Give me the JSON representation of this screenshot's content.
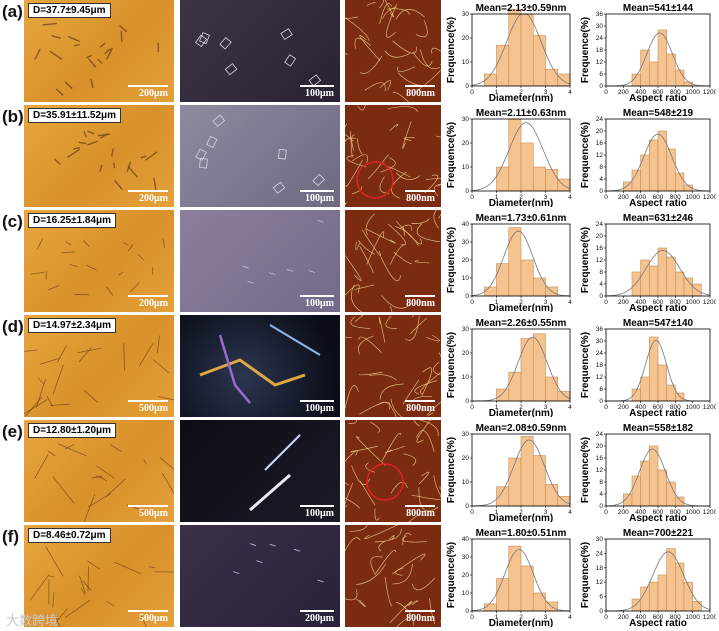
{
  "figure": {
    "watermark": "大数跨境",
    "axis_labels": {
      "diameter_x": "Diameter(nm)",
      "aspect_x": "Aspect ratio",
      "freq_y": "Frequence(%)"
    }
  },
  "chart_data": [
    {
      "panel": "(a)",
      "sizes": "D=37.7±9.45μm",
      "scales": [
        "200μm",
        "100μm",
        "800nm"
      ],
      "diameter": {
        "type": "bar",
        "title": "Mean=2.13±0.59nm",
        "xlabel": "Diameter(nm)",
        "ylabel": "Frequence(%)",
        "xlim": [
          0,
          4
        ],
        "ylim": [
          0,
          30
        ],
        "xticks": [
          0,
          1,
          2,
          3,
          4
        ],
        "yticks": [
          0,
          10,
          20,
          30
        ],
        "bin_width": 0.5,
        "bin_start": [
          0.5,
          1.0,
          1.5,
          2.0,
          2.5,
          3.0,
          3.5
        ],
        "values": [
          5,
          17,
          32,
          30,
          21,
          7,
          5
        ]
      },
      "aspect": {
        "type": "bar",
        "title": "Mean=541±144",
        "xlabel": "Aspect ratio",
        "ylabel": "Frequence(%)",
        "xlim": [
          0,
          1200
        ],
        "ylim": [
          0,
          36
        ],
        "xticks": [
          0,
          200,
          400,
          600,
          800,
          1000,
          1200
        ],
        "yticks": [
          0,
          6,
          12,
          18,
          24,
          30,
          36
        ],
        "bin_width": 100,
        "bin_start": [
          300,
          400,
          500,
          600,
          700,
          800,
          900
        ],
        "values": [
          6,
          18,
          12,
          28,
          16,
          8,
          2
        ]
      }
    },
    {
      "panel": "(b)",
      "sizes": "D=35.91±11.52μm",
      "scales": [
        "200μm",
        "100μm",
        "800nm"
      ],
      "diameter": {
        "type": "bar",
        "title": "Mean=2.11±0.63nm",
        "xlabel": "Diameter(nm)",
        "ylabel": "Frequence(%)",
        "xlim": [
          0,
          4
        ],
        "ylim": [
          0,
          30
        ],
        "xticks": [
          0,
          1,
          2,
          3,
          4
        ],
        "yticks": [
          0,
          10,
          20,
          30
        ],
        "bin_width": 0.5,
        "bin_start": [
          1.0,
          1.5,
          2.0,
          2.5,
          3.0,
          3.5
        ],
        "values": [
          10,
          30,
          20,
          10,
          9,
          5
        ]
      },
      "aspect": {
        "type": "bar",
        "title": "Mean=548±219",
        "xlabel": "Aspect ratio",
        "ylabel": "Frequence(%)",
        "xlim": [
          0,
          1200
        ],
        "ylim": [
          0,
          24
        ],
        "xticks": [
          0,
          200,
          400,
          600,
          800,
          1000,
          1200
        ],
        "yticks": [
          0,
          4,
          8,
          12,
          16,
          20,
          24
        ],
        "bin_width": 100,
        "bin_start": [
          200,
          300,
          400,
          500,
          600,
          700,
          800,
          900
        ],
        "values": [
          3,
          7,
          12,
          17,
          20,
          14,
          6,
          2
        ]
      }
    },
    {
      "panel": "(c)",
      "sizes": "D=16.25±1.84μm",
      "scales": [
        "200μm",
        "100μm",
        "800nm"
      ],
      "diameter": {
        "type": "bar",
        "title": "Mean=1.73±0.61nm",
        "xlabel": "Diameter(nm)",
        "ylabel": "Frequence(%)",
        "xlim": [
          0,
          4
        ],
        "ylim": [
          0,
          40
        ],
        "xticks": [
          0,
          1,
          2,
          3,
          4
        ],
        "yticks": [
          0,
          10,
          20,
          30,
          40
        ],
        "bin_width": 0.5,
        "bin_start": [
          0.5,
          1.0,
          1.5,
          2.0,
          2.5,
          3.0
        ],
        "values": [
          5,
          18,
          38,
          20,
          10,
          5
        ]
      },
      "aspect": {
        "type": "bar",
        "title": "Mean=631±246",
        "xlabel": "Aspect ratio",
        "ylabel": "Frequence(%)",
        "xlim": [
          0,
          1200
        ],
        "ylim": [
          0,
          24
        ],
        "xticks": [
          0,
          200,
          400,
          600,
          800,
          1000,
          1200
        ],
        "yticks": [
          0,
          4,
          8,
          12,
          16,
          20,
          24
        ],
        "bin_width": 100,
        "bin_start": [
          300,
          400,
          500,
          600,
          700,
          800,
          900,
          1000
        ],
        "values": [
          8,
          12,
          10,
          16,
          13,
          8,
          6,
          4
        ]
      }
    },
    {
      "panel": "(d)",
      "sizes": "D=14.97±2.34μm",
      "scales": [
        "500μm",
        "100μm",
        "800nm"
      ],
      "diameter": {
        "type": "bar",
        "title": "Mean=2.26±0.55nm",
        "xlabel": "Diameter(nm)",
        "ylabel": "Frequence(%)",
        "xlim": [
          0,
          4
        ],
        "ylim": [
          0,
          30
        ],
        "xticks": [
          0,
          1,
          2,
          3,
          4
        ],
        "yticks": [
          0,
          10,
          20,
          30
        ],
        "bin_width": 0.5,
        "bin_start": [
          1.0,
          1.5,
          2.0,
          2.5,
          3.0,
          3.5
        ],
        "values": [
          5,
          12,
          26,
          28,
          10,
          4
        ]
      },
      "aspect": {
        "type": "bar",
        "title": "Mean=547±140",
        "xlabel": "Aspect ratio",
        "ylabel": "Frequence(%)",
        "xlim": [
          0,
          1200
        ],
        "ylim": [
          0,
          36
        ],
        "xticks": [
          0,
          200,
          400,
          600,
          800,
          1000,
          1200
        ],
        "yticks": [
          0,
          6,
          12,
          18,
          24,
          30,
          36
        ],
        "bin_width": 100,
        "bin_start": [
          300,
          400,
          500,
          600,
          700,
          800
        ],
        "values": [
          6,
          12,
          32,
          18,
          8,
          4
        ]
      }
    },
    {
      "panel": "(e)",
      "sizes": "D=12.80±1.20μm",
      "scales": [
        "500μm",
        "100μm",
        "800nm"
      ],
      "diameter": {
        "type": "bar",
        "title": "Mean=2.08±0.59nm",
        "xlabel": "Diameter(nm)",
        "ylabel": "Frequence(%)",
        "xlim": [
          0,
          4
        ],
        "ylim": [
          0,
          30
        ],
        "xticks": [
          0,
          1,
          2,
          3,
          4
        ],
        "yticks": [
          0,
          10,
          20,
          30
        ],
        "bin_width": 0.5,
        "bin_start": [
          1.0,
          1.5,
          2.0,
          2.5,
          3.0,
          3.5
        ],
        "values": [
          8,
          20,
          29,
          21,
          9,
          4
        ]
      },
      "aspect": {
        "type": "bar",
        "title": "Mean=558±182",
        "xlabel": "Aspect ratio",
        "ylabel": "Frequence(%)",
        "xlim": [
          0,
          1200
        ],
        "ylim": [
          0,
          24
        ],
        "xticks": [
          0,
          200,
          400,
          600,
          800,
          1000,
          1200
        ],
        "yticks": [
          0,
          4,
          8,
          12,
          16,
          20,
          24
        ],
        "bin_width": 100,
        "bin_start": [
          200,
          300,
          400,
          500,
          600,
          700,
          800
        ],
        "values": [
          4,
          10,
          15,
          20,
          12,
          8,
          3
        ]
      }
    },
    {
      "panel": "(f)",
      "sizes": "D=8.46±0.72μm",
      "scales": [
        "500μm",
        "200μm",
        "800nm"
      ],
      "diameter": {
        "type": "bar",
        "title": "Mean=1.80±0.51nm",
        "xlabel": "Diameter(nm)",
        "ylabel": "Frequence(%)",
        "xlim": [
          0,
          4
        ],
        "ylim": [
          0,
          40
        ],
        "xticks": [
          0,
          1,
          2,
          3,
          4
        ],
        "yticks": [
          0,
          10,
          20,
          30,
          40
        ],
        "bin_width": 0.5,
        "bin_start": [
          0.5,
          1.0,
          1.5,
          2.0,
          2.5,
          3.0
        ],
        "values": [
          4,
          18,
          36,
          25,
          10,
          5
        ]
      },
      "aspect": {
        "type": "bar",
        "title": "Mean=700±221",
        "xlabel": "Aspect ratio",
        "ylabel": "Frequence(%)",
        "xlim": [
          0,
          1200
        ],
        "ylim": [
          0,
          30
        ],
        "xticks": [
          0,
          200,
          400,
          600,
          800,
          1000,
          1200
        ],
        "yticks": [
          0,
          6,
          12,
          18,
          24,
          30
        ],
        "bin_width": 100,
        "bin_start": [
          300,
          400,
          500,
          600,
          700,
          800,
          900,
          1000
        ],
        "values": [
          5,
          10,
          12,
          15,
          26,
          20,
          12,
          4
        ]
      }
    }
  ]
}
